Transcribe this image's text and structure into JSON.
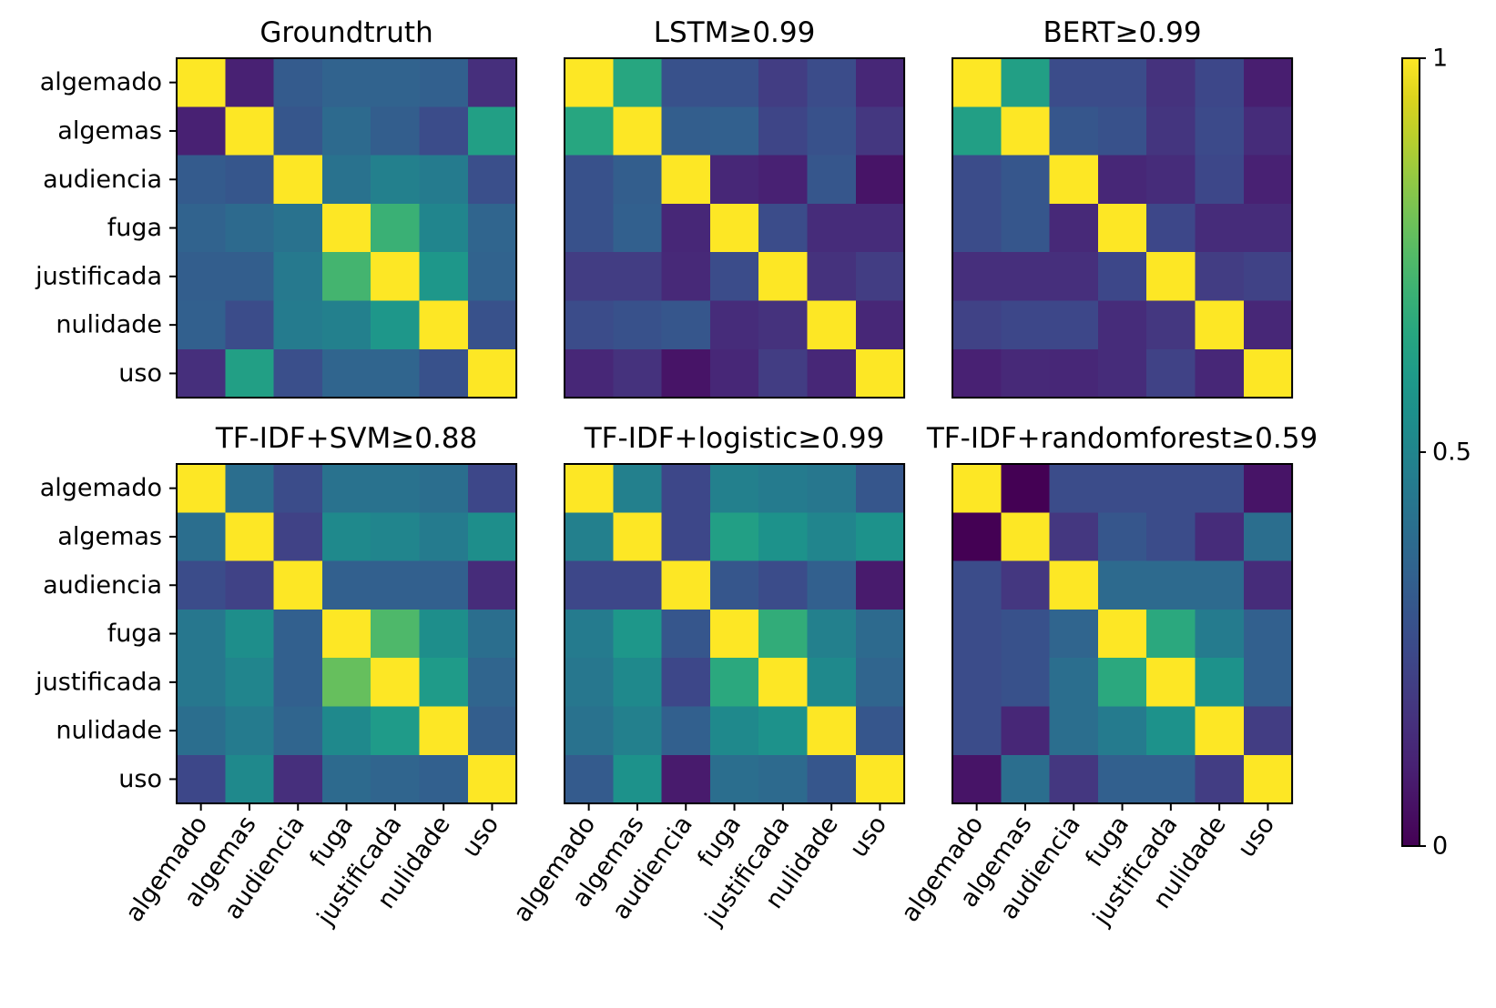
{
  "chart_data": {
    "type": "heatmap",
    "row_labels": [
      "algemado",
      "algemas",
      "audiencia",
      "fuga",
      "justificada",
      "nulidade",
      "uso"
    ],
    "col_labels": [
      "algemado",
      "algemas",
      "audiencia",
      "fuga",
      "justificada",
      "nulidade",
      "uso"
    ],
    "colorbar": {
      "colormap": "viridis",
      "range": [
        0,
        1
      ],
      "ticks": [
        {
          "value": 0,
          "label": "0"
        },
        {
          "value": 0.5,
          "label": "0.5"
        },
        {
          "value": 1,
          "label": "1"
        }
      ]
    },
    "panels": [
      {
        "title": "Groundtruth",
        "matrix": [
          [
            1.0,
            0.1,
            0.32,
            0.35,
            0.35,
            0.34,
            0.15
          ],
          [
            0.1,
            1.0,
            0.3,
            0.38,
            0.33,
            0.26,
            0.62
          ],
          [
            0.32,
            0.3,
            1.0,
            0.42,
            0.48,
            0.46,
            0.27
          ],
          [
            0.35,
            0.38,
            0.42,
            1.0,
            0.7,
            0.5,
            0.36
          ],
          [
            0.33,
            0.33,
            0.45,
            0.72,
            1.0,
            0.58,
            0.35
          ],
          [
            0.34,
            0.26,
            0.46,
            0.48,
            0.58,
            1.0,
            0.28
          ],
          [
            0.15,
            0.62,
            0.27,
            0.36,
            0.36,
            0.28,
            1.0
          ]
        ]
      },
      {
        "title": "LSTM≥0.99",
        "matrix": [
          [
            1.0,
            0.65,
            0.28,
            0.28,
            0.2,
            0.26,
            0.12
          ],
          [
            0.65,
            1.0,
            0.33,
            0.34,
            0.23,
            0.28,
            0.18
          ],
          [
            0.28,
            0.33,
            1.0,
            0.12,
            0.1,
            0.3,
            0.06
          ],
          [
            0.28,
            0.34,
            0.12,
            1.0,
            0.26,
            0.14,
            0.14
          ],
          [
            0.2,
            0.2,
            0.13,
            0.26,
            1.0,
            0.16,
            0.2
          ],
          [
            0.26,
            0.28,
            0.3,
            0.14,
            0.16,
            1.0,
            0.12
          ],
          [
            0.12,
            0.16,
            0.06,
            0.12,
            0.2,
            0.12,
            1.0
          ]
        ]
      },
      {
        "title": "BERT≥0.99",
        "matrix": [
          [
            1.0,
            0.62,
            0.26,
            0.26,
            0.16,
            0.24,
            0.09
          ],
          [
            0.62,
            1.0,
            0.3,
            0.28,
            0.17,
            0.25,
            0.14
          ],
          [
            0.26,
            0.3,
            1.0,
            0.12,
            0.14,
            0.24,
            0.1
          ],
          [
            0.26,
            0.3,
            0.13,
            1.0,
            0.24,
            0.14,
            0.14
          ],
          [
            0.15,
            0.15,
            0.15,
            0.24,
            1.0,
            0.2,
            0.22
          ],
          [
            0.22,
            0.24,
            0.24,
            0.14,
            0.18,
            1.0,
            0.12
          ],
          [
            0.1,
            0.13,
            0.12,
            0.14,
            0.22,
            0.12,
            1.0
          ]
        ]
      },
      {
        "title": "TF-IDF+SVM≥0.88",
        "matrix": [
          [
            1.0,
            0.4,
            0.26,
            0.42,
            0.42,
            0.4,
            0.24
          ],
          [
            0.4,
            1.0,
            0.22,
            0.52,
            0.5,
            0.46,
            0.54
          ],
          [
            0.26,
            0.22,
            1.0,
            0.34,
            0.34,
            0.34,
            0.14
          ],
          [
            0.44,
            0.54,
            0.34,
            1.0,
            0.74,
            0.54,
            0.4
          ],
          [
            0.44,
            0.5,
            0.34,
            0.78,
            1.0,
            0.6,
            0.36
          ],
          [
            0.4,
            0.46,
            0.36,
            0.52,
            0.6,
            1.0,
            0.33
          ],
          [
            0.24,
            0.52,
            0.15,
            0.38,
            0.36,
            0.34,
            1.0
          ]
        ]
      },
      {
        "title": "TF-IDF+logistic≥0.99",
        "matrix": [
          [
            1.0,
            0.48,
            0.24,
            0.48,
            0.46,
            0.44,
            0.3
          ],
          [
            0.48,
            1.0,
            0.24,
            0.62,
            0.56,
            0.5,
            0.56
          ],
          [
            0.24,
            0.24,
            1.0,
            0.3,
            0.26,
            0.34,
            0.08
          ],
          [
            0.46,
            0.58,
            0.3,
            1.0,
            0.68,
            0.48,
            0.38
          ],
          [
            0.44,
            0.52,
            0.24,
            0.66,
            1.0,
            0.52,
            0.36
          ],
          [
            0.42,
            0.48,
            0.34,
            0.52,
            0.56,
            1.0,
            0.3
          ],
          [
            0.32,
            0.56,
            0.08,
            0.4,
            0.38,
            0.3,
            1.0
          ]
        ]
      },
      {
        "title": "TF-IDF+randomforest≥0.59",
        "matrix": [
          [
            1.0,
            0.0,
            0.26,
            0.26,
            0.26,
            0.26,
            0.06
          ],
          [
            0.0,
            1.0,
            0.18,
            0.3,
            0.26,
            0.14,
            0.4
          ],
          [
            0.26,
            0.18,
            1.0,
            0.38,
            0.38,
            0.38,
            0.14
          ],
          [
            0.26,
            0.28,
            0.36,
            1.0,
            0.66,
            0.46,
            0.34
          ],
          [
            0.26,
            0.28,
            0.4,
            0.66,
            1.0,
            0.56,
            0.34
          ],
          [
            0.26,
            0.12,
            0.4,
            0.46,
            0.56,
            1.0,
            0.2
          ],
          [
            0.06,
            0.4,
            0.18,
            0.34,
            0.34,
            0.2,
            1.0
          ]
        ]
      }
    ]
  }
}
